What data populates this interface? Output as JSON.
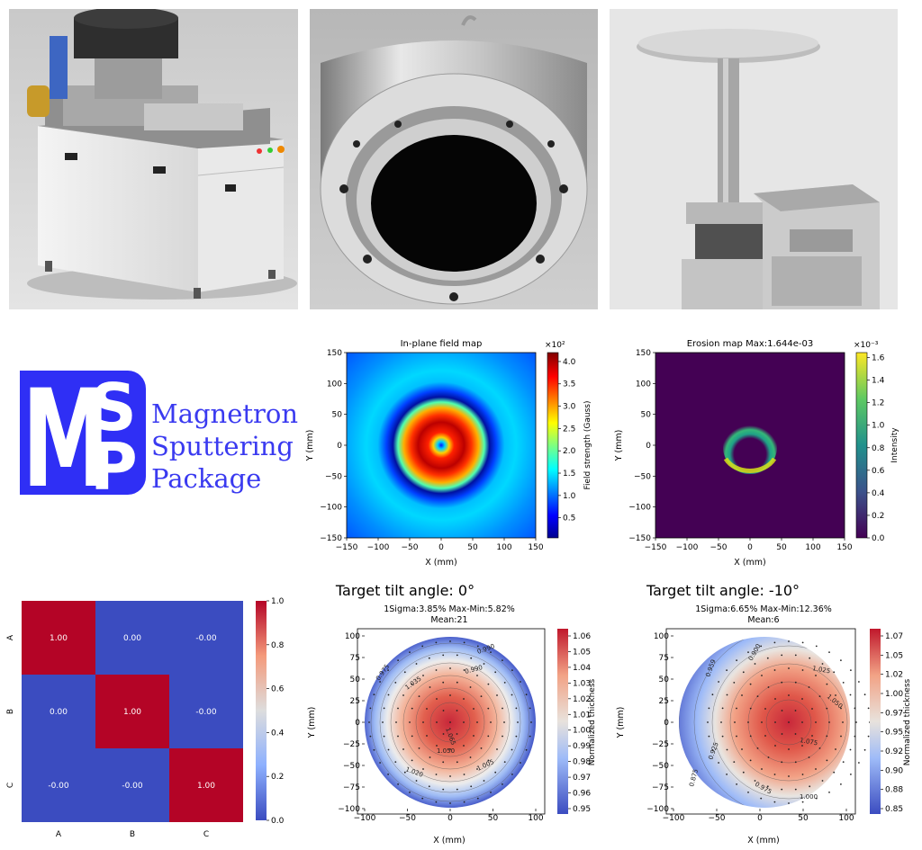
{
  "photos": [
    {
      "name": "sputtering-system-photo"
    },
    {
      "name": "magnetron-head-photo"
    },
    {
      "name": "substrate-stage-photo"
    }
  ],
  "logo": {
    "letters": [
      "M",
      "S",
      "P"
    ],
    "lines": [
      "Magnetron",
      "Sputtering",
      "Package"
    ],
    "color": "#3a3af0"
  },
  "chart_data": [
    {
      "type": "heatmap",
      "title": "In-plane field map",
      "xlabel": "X (mm)",
      "ylabel": "Y (mm)",
      "xlim": [
        -150,
        150
      ],
      "ylim": [
        -150,
        150
      ],
      "xticks": [
        "-150",
        "-100",
        "-50",
        "0",
        "50",
        "100",
        "150"
      ],
      "yticks": [
        "150",
        "100",
        "50",
        "0",
        "-50",
        "-100",
        "-150"
      ],
      "colorbar": {
        "label": "Field strength (Gauss)",
        "multiplier": "×10²",
        "range": [
          0.05,
          4.2
        ],
        "ticks": [
          "4.0",
          "3.5",
          "3.0",
          "2.5",
          "2.0",
          "1.5",
          "1.0",
          "0.5"
        ],
        "colormap": "jet"
      }
    },
    {
      "type": "heatmap",
      "title": "Erosion map Max:1.644e-03",
      "xlabel": "X (mm)",
      "ylabel": "Y (mm)",
      "xlim": [
        -150,
        150
      ],
      "ylim": [
        -150,
        150
      ],
      "xticks": [
        "-150",
        "-100",
        "-50",
        "0",
        "50",
        "100",
        "150"
      ],
      "yticks": [
        "150",
        "100",
        "50",
        "0",
        "-50",
        "-100",
        "-150"
      ],
      "colorbar": {
        "label": "Intensity",
        "multiplier": "×10⁻³",
        "range": [
          0,
          1.644
        ],
        "ticks": [
          "1.6",
          "1.4",
          "1.2",
          "1.0",
          "0.8",
          "0.6",
          "0.4",
          "0.2",
          "0.0"
        ],
        "colormap": "viridis"
      }
    },
    {
      "type": "heatmap",
      "categories": [
        "A",
        "B",
        "C"
      ],
      "values": [
        [
          "1.00",
          "0.00",
          "-0.00"
        ],
        [
          "0.00",
          "1.00",
          "-0.00"
        ],
        [
          "-0.00",
          "-0.00",
          "1.00"
        ]
      ],
      "colorbar": {
        "range": [
          0,
          1
        ],
        "ticks": [
          "1.0",
          "0.8",
          "0.6",
          "0.4",
          "0.2",
          "0.0"
        ],
        "colormap": "coolwarm"
      }
    },
    {
      "type": "heatmap",
      "heading": "Target tilt angle: 0°",
      "title_line1": "1Sigma:3.85% Max-Min:5.82%",
      "title_line2": "Mean:21",
      "xlabel": "X (mm)",
      "ylabel": "Y (mm)",
      "xticks": [
        "-100",
        "-50",
        "0",
        "50",
        "100"
      ],
      "yticks": [
        "100",
        "75",
        "50",
        "25",
        "0",
        "-25",
        "-50",
        "-75",
        "-100"
      ],
      "contour_labels": [
        "0.990",
        "0.975",
        "1.035",
        "1.065",
        "1.050",
        "1.020",
        "1.005",
        "0.990"
      ],
      "colorbar": {
        "label": "Normalized thickness",
        "range": [
          0.95,
          1.07
        ],
        "ticks": [
          "1.06",
          "1.05",
          "1.04",
          "1.03",
          "1.02",
          "1.01",
          "1.00",
          "0.99",
          "0.98",
          "0.97",
          "0.96",
          "0.95"
        ]
      }
    },
    {
      "type": "heatmap",
      "heading": "Target tilt angle: -10°",
      "title_line1": "1Sigma:6.65% Max-Min:12.36%",
      "title_line2": "Mean:6",
      "xlabel": "X (mm)",
      "ylabel": "Y (mm)",
      "xticks": [
        "-100",
        "-50",
        "0",
        "50",
        "100"
      ],
      "yticks": [
        "100",
        "75",
        "50",
        "25",
        "0",
        "-25",
        "-50",
        "-75",
        "-100"
      ],
      "contour_labels": [
        "0.900",
        "0.959",
        "1.025",
        "1.050",
        "1.075",
        "0.975",
        "1.000",
        "0.925",
        "0.875"
      ],
      "colorbar": {
        "label": "Normalized thickness",
        "range": [
          0.85,
          1.08
        ],
        "ticks": [
          "1.07",
          "1.05",
          "1.02",
          "1.00",
          "0.97",
          "0.95",
          "0.92",
          "0.90",
          "0.88",
          "0.85"
        ]
      }
    }
  ]
}
